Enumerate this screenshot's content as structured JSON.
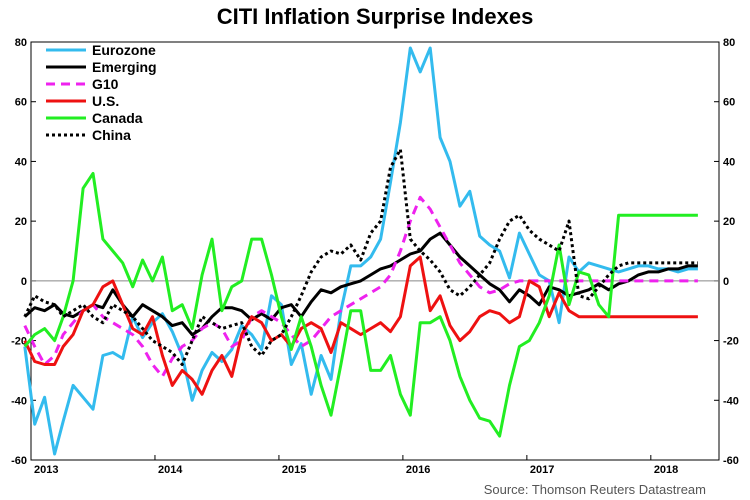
{
  "chart_data": {
    "type": "line",
    "title": "CITI Inflation Surprise Indexes",
    "source": "Source: Thomson Reuters Datastream",
    "xlabel": "",
    "ylabel": "",
    "ylim": [
      -60,
      80
    ],
    "yticks": [
      "-60",
      "-40",
      "-20",
      "0",
      "20",
      "40",
      "60",
      "80"
    ],
    "xlim": [
      2013.0,
      2018.55
    ],
    "xticks": [
      {
        "label": "2013",
        "x": 2013.0
      },
      {
        "label": "2014",
        "x": 2014.0
      },
      {
        "label": "2015",
        "x": 2015.0
      },
      {
        "label": "2016",
        "x": 2016.0
      },
      {
        "label": "2017",
        "x": 2017.0
      },
      {
        "label": "2018",
        "x": 2018.0
      }
    ],
    "series": [
      {
        "name": "Eurozone",
        "color": "#33bbee",
        "dash": "",
        "x": [
          2012.95,
          2013.03,
          2013.11,
          2013.19,
          2013.26,
          2013.34,
          2013.42,
          2013.5,
          2013.58,
          2013.66,
          2013.74,
          2013.82,
          2013.9,
          2013.98,
          2014.06,
          2014.14,
          2014.22,
          2014.3,
          2014.38,
          2014.46,
          2014.54,
          2014.62,
          2014.7,
          2014.78,
          2014.86,
          2014.94,
          2015.02,
          2015.1,
          2015.18,
          2015.26,
          2015.34,
          2015.42,
          2015.5,
          2015.58,
          2015.66,
          2015.74,
          2015.82,
          2015.9,
          2015.98,
          2016.06,
          2016.14,
          2016.22,
          2016.3,
          2016.38,
          2016.46,
          2016.54,
          2016.62,
          2016.7,
          2016.78,
          2016.86,
          2016.94,
          2017.02,
          2017.1,
          2017.18,
          2017.26,
          2017.34,
          2017.42,
          2017.5,
          2017.58,
          2017.66,
          2017.74,
          2017.82,
          2017.9,
          2017.98,
          2018.06,
          2018.14,
          2018.22,
          2018.3,
          2018.38
        ],
        "y": [
          -22,
          -48,
          -39,
          -58,
          -47,
          -35,
          -39,
          -43,
          -25,
          -24,
          -26,
          -12,
          -19,
          -14,
          -11,
          -17,
          -25,
          -40,
          -30,
          -24,
          -27,
          -23,
          -15,
          -18,
          -23,
          -5,
          -8,
          -28,
          -21,
          -38,
          -25,
          -33,
          -10,
          5,
          5,
          8,
          14,
          33,
          53,
          78,
          70,
          78,
          48,
          40,
          25,
          30,
          15,
          12,
          10,
          1,
          16,
          9,
          2,
          0,
          -14,
          8,
          3,
          6,
          5,
          4,
          3,
          4,
          5,
          5,
          4,
          4,
          3,
          4,
          4
        ]
      },
      {
        "name": "Emerging",
        "color": "#000000",
        "dash": "",
        "x": [
          2012.95,
          2013.03,
          2013.11,
          2013.19,
          2013.26,
          2013.34,
          2013.42,
          2013.5,
          2013.58,
          2013.66,
          2013.74,
          2013.82,
          2013.9,
          2013.98,
          2014.06,
          2014.14,
          2014.22,
          2014.3,
          2014.38,
          2014.46,
          2014.54,
          2014.62,
          2014.7,
          2014.78,
          2014.86,
          2014.94,
          2015.02,
          2015.1,
          2015.18,
          2015.26,
          2015.34,
          2015.42,
          2015.5,
          2015.58,
          2015.66,
          2015.74,
          2015.82,
          2015.9,
          2015.98,
          2016.06,
          2016.14,
          2016.22,
          2016.3,
          2016.38,
          2016.46,
          2016.54,
          2016.62,
          2016.7,
          2016.78,
          2016.86,
          2016.94,
          2017.02,
          2017.1,
          2017.18,
          2017.26,
          2017.34,
          2017.42,
          2017.5,
          2017.58,
          2017.66,
          2017.74,
          2017.82,
          2017.9,
          2017.98,
          2018.06,
          2018.14,
          2018.22,
          2018.3,
          2018.38
        ],
        "y": [
          -12,
          -9,
          -10,
          -8,
          -11,
          -12,
          -10,
          -8,
          -9,
          -3,
          -8,
          -12,
          -8,
          -10,
          -12,
          -15,
          -14,
          -18,
          -16,
          -12,
          -9,
          -9,
          -10,
          -13,
          -11,
          -13,
          -9,
          -8,
          -12,
          -7,
          -3,
          -4,
          -2,
          -1,
          0,
          2,
          4,
          5,
          7,
          9,
          10,
          14,
          16,
          12,
          8,
          5,
          2,
          -1,
          -3,
          -7,
          -3,
          -5,
          -8,
          -2,
          -3,
          -5,
          -4,
          -3,
          -1,
          -3,
          -1,
          0,
          2,
          3,
          3,
          4,
          4,
          5,
          5
        ]
      },
      {
        "name": "G10",
        "color": "#ee22ee",
        "dash": "9,6",
        "x": [
          2012.95,
          2013.03,
          2013.11,
          2013.19,
          2013.26,
          2013.34,
          2013.42,
          2013.5,
          2013.58,
          2013.66,
          2013.74,
          2013.82,
          2013.9,
          2013.98,
          2014.06,
          2014.14,
          2014.22,
          2014.3,
          2014.38,
          2014.46,
          2014.54,
          2014.62,
          2014.7,
          2014.78,
          2014.86,
          2014.94,
          2015.02,
          2015.1,
          2015.18,
          2015.26,
          2015.34,
          2015.42,
          2015.5,
          2015.58,
          2015.66,
          2015.74,
          2015.82,
          2015.9,
          2015.98,
          2016.06,
          2016.14,
          2016.22,
          2016.3,
          2016.38,
          2016.46,
          2016.54,
          2016.62,
          2016.7,
          2016.78,
          2016.86,
          2016.94,
          2017.02,
          2017.1,
          2017.18,
          2017.26,
          2017.34,
          2017.42,
          2017.5,
          2017.58,
          2017.66,
          2017.74,
          2017.82,
          2017.9,
          2017.98,
          2018.06,
          2018.14,
          2018.22,
          2018.3,
          2018.38
        ],
        "y": [
          -15,
          -22,
          -28,
          -25,
          -18,
          -14,
          -10,
          -8,
          -12,
          -14,
          -16,
          -18,
          -22,
          -28,
          -32,
          -26,
          -22,
          -20,
          -16,
          -14,
          -16,
          -22,
          -20,
          -12,
          -10,
          -12,
          -14,
          -18,
          -22,
          -20,
          -16,
          -12,
          -10,
          -8,
          -6,
          -4,
          -2,
          2,
          10,
          20,
          28,
          24,
          18,
          12,
          6,
          2,
          -2,
          -4,
          -3,
          -1,
          0,
          0,
          0,
          0,
          0,
          0,
          0,
          0,
          0,
          0,
          0,
          0,
          0,
          0,
          0,
          0,
          0,
          0,
          0
        ]
      },
      {
        "name": "U.S.",
        "color": "#ee1111",
        "dash": "",
        "x": [
          2012.95,
          2013.03,
          2013.11,
          2013.19,
          2013.26,
          2013.34,
          2013.42,
          2013.5,
          2013.58,
          2013.66,
          2013.74,
          2013.82,
          2013.9,
          2013.98,
          2014.06,
          2014.14,
          2014.22,
          2014.3,
          2014.38,
          2014.46,
          2014.54,
          2014.62,
          2014.7,
          2014.78,
          2014.86,
          2014.94,
          2015.02,
          2015.1,
          2015.18,
          2015.26,
          2015.34,
          2015.42,
          2015.5,
          2015.58,
          2015.66,
          2015.74,
          2015.82,
          2015.9,
          2015.98,
          2016.06,
          2016.14,
          2016.22,
          2016.3,
          2016.38,
          2016.46,
          2016.54,
          2016.62,
          2016.7,
          2016.78,
          2016.86,
          2016.94,
          2017.02,
          2017.1,
          2017.18,
          2017.26,
          2017.34,
          2017.42,
          2017.5,
          2017.58,
          2017.66,
          2017.74,
          2017.82,
          2017.9,
          2017.98,
          2018.06,
          2018.14,
          2018.22,
          2018.3,
          2018.38
        ],
        "y": [
          -20,
          -27,
          -28,
          -28,
          -22,
          -18,
          -10,
          -8,
          -2,
          0,
          -8,
          -16,
          -18,
          -12,
          -25,
          -35,
          -30,
          -33,
          -38,
          -30,
          -25,
          -32,
          -18,
          -12,
          -14,
          -20,
          -18,
          -22,
          -16,
          -14,
          -16,
          -24,
          -14,
          -16,
          -18,
          -16,
          -14,
          -17,
          -12,
          5,
          8,
          -10,
          -5,
          -15,
          -20,
          -17,
          -12,
          -10,
          -11,
          -14,
          -12,
          0,
          -2,
          -12,
          -4,
          -10,
          -12,
          -12,
          -12,
          -12,
          -12,
          -12,
          -12,
          -12,
          -12,
          -12,
          -12,
          -12,
          -12
        ]
      },
      {
        "name": "Canada",
        "color": "#22ee22",
        "dash": "",
        "x": [
          2012.95,
          2013.03,
          2013.11,
          2013.19,
          2013.26,
          2013.34,
          2013.42,
          2013.5,
          2013.58,
          2013.66,
          2013.74,
          2013.82,
          2013.9,
          2013.98,
          2014.06,
          2014.14,
          2014.22,
          2014.3,
          2014.38,
          2014.46,
          2014.54,
          2014.62,
          2014.7,
          2014.78,
          2014.86,
          2014.94,
          2015.02,
          2015.1,
          2015.18,
          2015.26,
          2015.34,
          2015.42,
          2015.5,
          2015.58,
          2015.66,
          2015.74,
          2015.82,
          2015.9,
          2015.98,
          2016.06,
          2016.14,
          2016.22,
          2016.3,
          2016.38,
          2016.46,
          2016.54,
          2016.62,
          2016.7,
          2016.78,
          2016.86,
          2016.94,
          2017.02,
          2017.1,
          2017.18,
          2017.26,
          2017.34,
          2017.42,
          2017.5,
          2017.58,
          2017.66,
          2017.74,
          2017.82,
          2017.9,
          2017.98,
          2018.06,
          2018.14,
          2018.22,
          2018.3,
          2018.38
        ],
        "y": [
          -22,
          -18,
          -16,
          -20,
          -12,
          0,
          31,
          36,
          14,
          10,
          6,
          -2,
          7,
          0,
          8,
          -10,
          -8,
          -16,
          2,
          14,
          -10,
          -2,
          0,
          14,
          14,
          2,
          -12,
          -23,
          -12,
          -22,
          -35,
          -45,
          -28,
          -10,
          -10,
          -30,
          -30,
          -25,
          -38,
          -45,
          -14,
          -14,
          -12,
          -20,
          -32,
          -40,
          -46,
          -47,
          -52,
          -35,
          -22,
          -20,
          -14,
          -5,
          12,
          -8,
          3,
          2,
          -8,
          -12,
          22,
          22,
          22,
          22,
          22,
          22,
          22,
          22,
          22
        ]
      },
      {
        "name": "China",
        "color": "#000000",
        "dash": "3,3",
        "x": [
          2012.95,
          2013.03,
          2013.11,
          2013.19,
          2013.26,
          2013.34,
          2013.42,
          2013.5,
          2013.58,
          2013.66,
          2013.74,
          2013.82,
          2013.9,
          2013.98,
          2014.06,
          2014.14,
          2014.22,
          2014.3,
          2014.38,
          2014.46,
          2014.54,
          2014.62,
          2014.7,
          2014.78,
          2014.86,
          2014.94,
          2015.02,
          2015.1,
          2015.18,
          2015.26,
          2015.34,
          2015.42,
          2015.5,
          2015.58,
          2015.66,
          2015.74,
          2015.82,
          2015.9,
          2015.98,
          2016.06,
          2016.14,
          2016.22,
          2016.3,
          2016.38,
          2016.46,
          2016.54,
          2016.62,
          2016.7,
          2016.78,
          2016.86,
          2016.94,
          2017.02,
          2017.1,
          2017.18,
          2017.26,
          2017.34,
          2017.42,
          2017.5,
          2017.58,
          2017.66,
          2017.74,
          2017.82,
          2017.9,
          2017.98,
          2018.06,
          2018.14,
          2018.22,
          2018.3,
          2018.38
        ],
        "y": [
          -12,
          -5,
          -7,
          -8,
          -12,
          -10,
          -8,
          -12,
          -14,
          -8,
          -10,
          -12,
          -16,
          -20,
          -22,
          -24,
          -28,
          -20,
          -12,
          -14,
          -16,
          -15,
          -14,
          -22,
          -25,
          -20,
          -18,
          -12,
          -5,
          3,
          8,
          10,
          9,
          12,
          7,
          16,
          20,
          38,
          44,
          14,
          10,
          7,
          3,
          -3,
          -5,
          -2,
          2,
          6,
          14,
          20,
          22,
          17,
          14,
          12,
          10,
          20,
          -5,
          -6,
          -2,
          2,
          5,
          6,
          6,
          6,
          6,
          6,
          6,
          6,
          6
        ]
      }
    ]
  }
}
